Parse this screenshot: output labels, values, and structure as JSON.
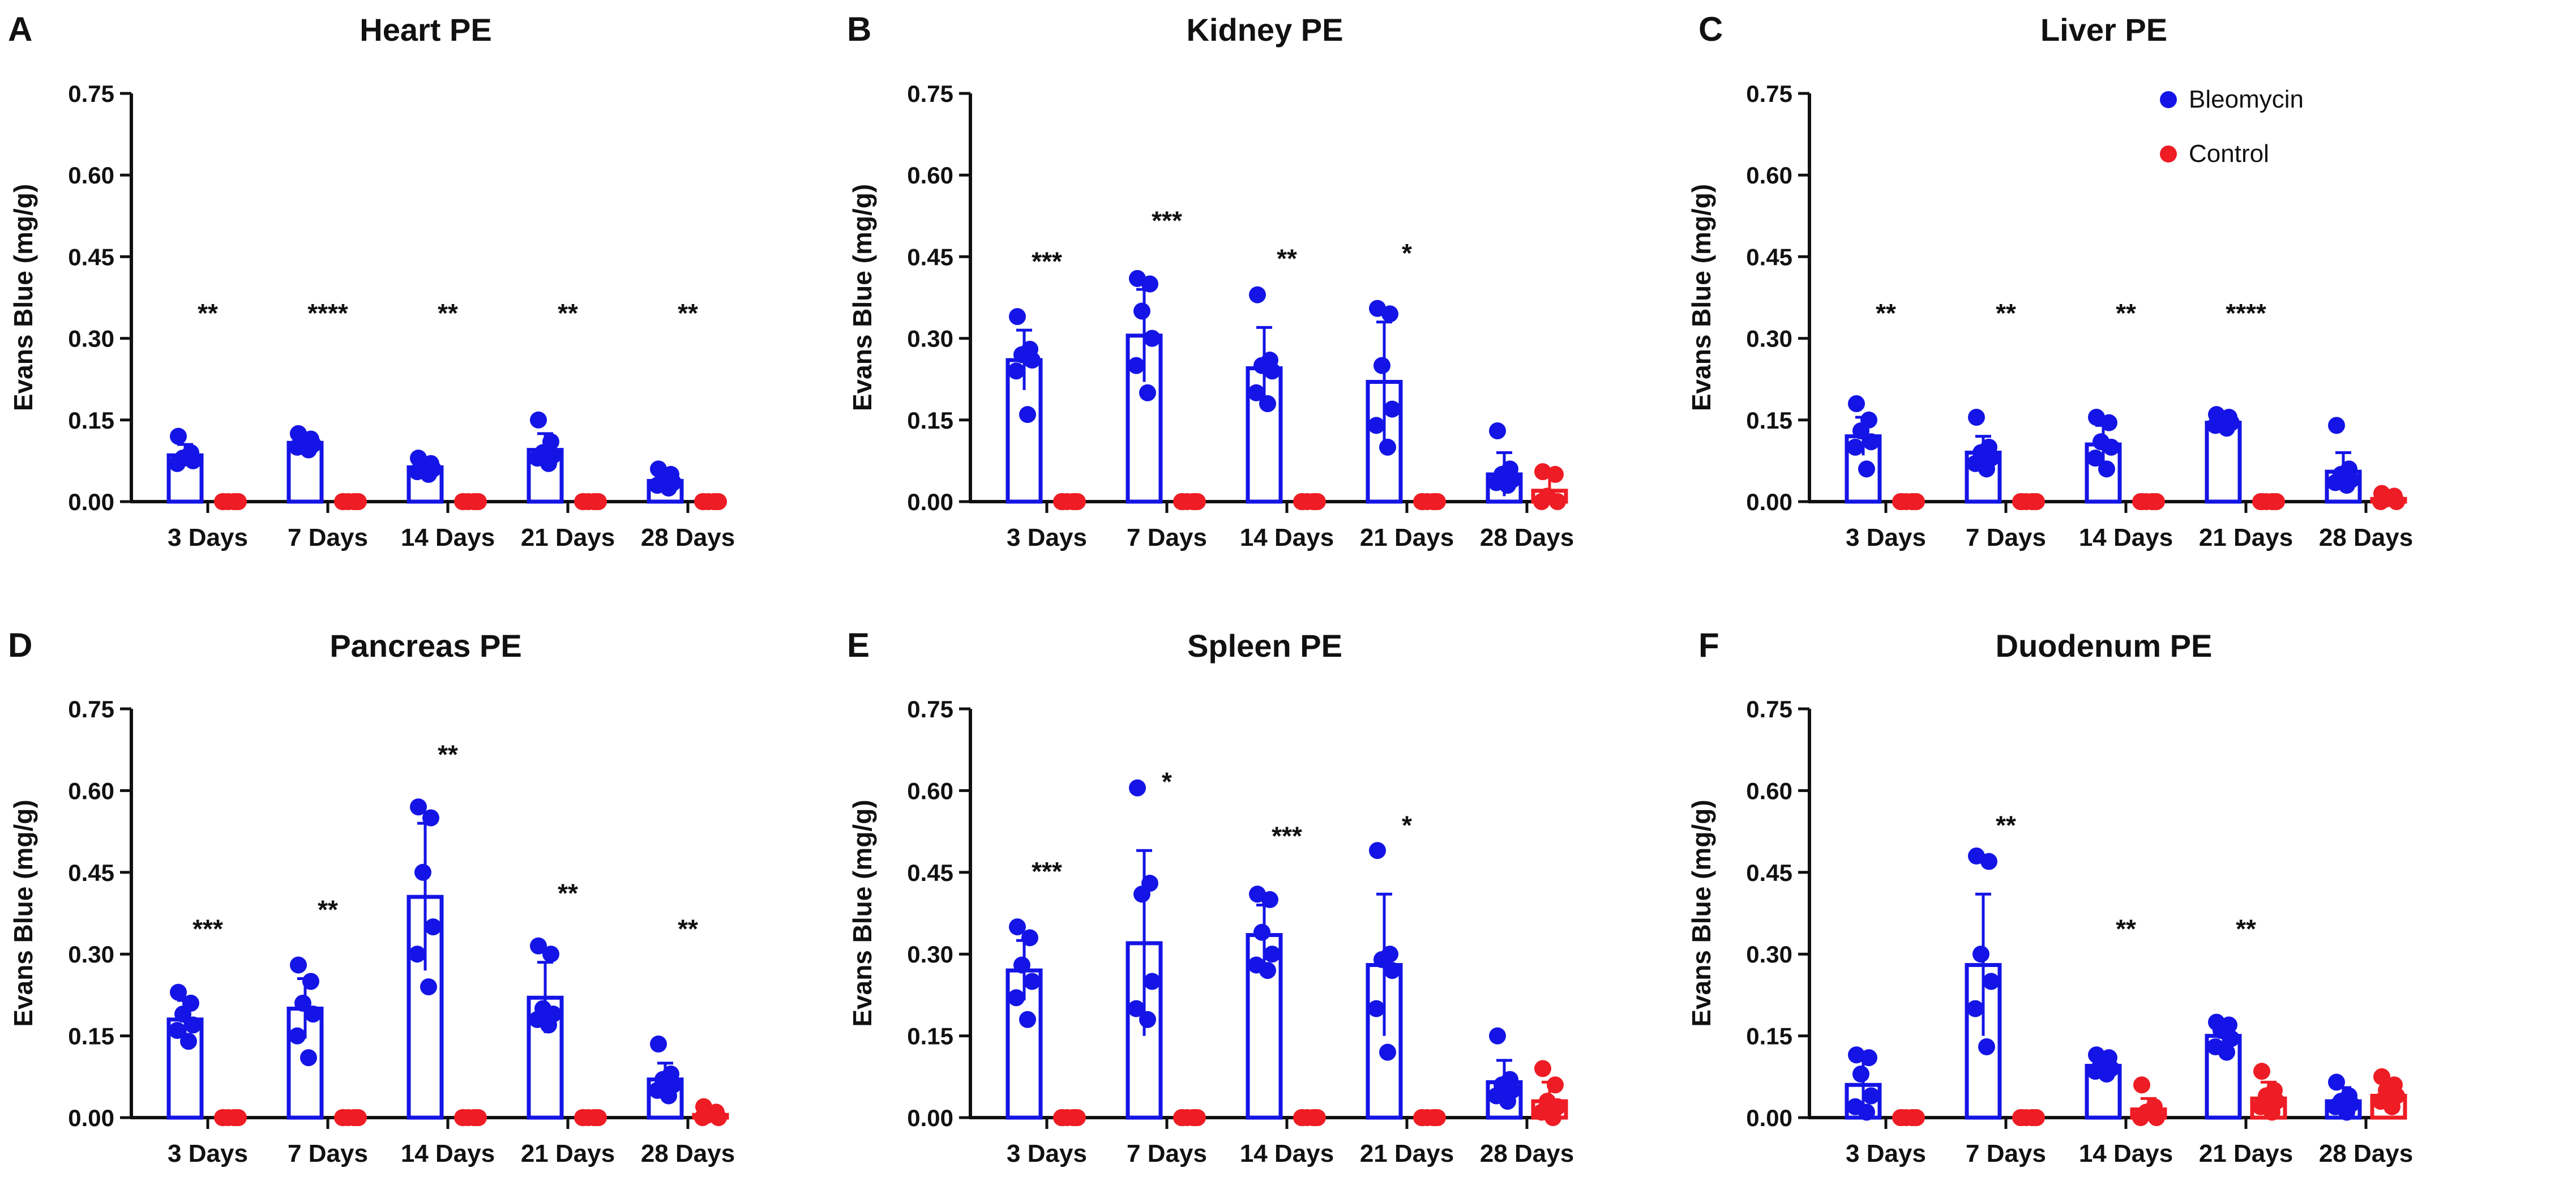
{
  "figure": {
    "ylabel": "Evans Blue (mg/g)",
    "yticks": [
      "0.00",
      "0.15",
      "0.30",
      "0.45",
      "0.60",
      "0.75"
    ],
    "ylim": [
      0,
      0.75
    ],
    "categories": [
      "3 Days",
      "7 Days",
      "14 Days",
      "21 Days",
      "28 Days"
    ],
    "legend": {
      "items": [
        {
          "label": "Bleomycin"
        },
        {
          "label": "Control"
        }
      ]
    }
  },
  "colors": {
    "bleomycin": "#1414e6",
    "control": "#ee1c24",
    "text": "#111111"
  },
  "chart_data": [
    {
      "panel": "A",
      "type": "bar",
      "title": "Heart PE",
      "xlabel": "",
      "ylabel": "Evans Blue (mg/g)",
      "ylim": [
        0,
        0.75
      ],
      "categories": [
        "3 Days",
        "7 Days",
        "14 Days",
        "21 Days",
        "28 Days"
      ],
      "significance": [
        "**",
        "****",
        "**",
        "**",
        "**"
      ],
      "series": [
        {
          "name": "Bleomycin",
          "values": [
            0.085,
            0.108,
            0.063,
            0.095,
            0.038
          ],
          "sd": [
            0.02,
            0.012,
            0.012,
            0.03,
            0.018
          ],
          "points": [
            [
              0.12,
              0.09,
              0.08,
              0.075,
              0.07,
              0.08
            ],
            [
              0.125,
              0.115,
              0.11,
              0.105,
              0.1,
              0.095
            ],
            [
              0.08,
              0.07,
              0.065,
              0.06,
              0.055,
              0.05
            ],
            [
              0.15,
              0.11,
              0.09,
              0.085,
              0.08,
              0.07
            ],
            [
              0.06,
              0.05,
              0.04,
              0.035,
              0.03,
              0.025
            ]
          ]
        },
        {
          "name": "Control",
          "values": [
            0,
            0,
            0,
            0,
            0
          ],
          "sd": [
            0,
            0,
            0,
            0,
            0
          ],
          "points": [
            [],
            [],
            [],
            [],
            []
          ]
        }
      ]
    },
    {
      "panel": "B",
      "type": "bar",
      "title": "Kidney PE",
      "xlabel": "",
      "ylabel": "Evans Blue (mg/g)",
      "ylim": [
        0,
        0.75
      ],
      "categories": [
        "3 Days",
        "7 Days",
        "14 Days",
        "21 Days",
        "28 Days"
      ],
      "significance": [
        "***",
        "***",
        "**",
        "*",
        ""
      ],
      "series": [
        {
          "name": "Bleomycin",
          "values": [
            0.26,
            0.305,
            0.245,
            0.22,
            0.05
          ],
          "sd": [
            0.055,
            0.085,
            0.075,
            0.11,
            0.04
          ],
          "points": [
            [
              0.34,
              0.28,
              0.27,
              0.26,
              0.24,
              0.16
            ],
            [
              0.41,
              0.4,
              0.35,
              0.3,
              0.25,
              0.2
            ],
            [
              0.38,
              0.26,
              0.25,
              0.24,
              0.2,
              0.18
            ],
            [
              0.355,
              0.345,
              0.25,
              0.17,
              0.14,
              0.1
            ],
            [
              0.13,
              0.06,
              0.05,
              0.04,
              0.035,
              0.03
            ]
          ]
        },
        {
          "name": "Control",
          "values": [
            0,
            0,
            0,
            0,
            0.02
          ],
          "sd": [
            0,
            0,
            0,
            0,
            0.03
          ],
          "points": [
            [],
            [],
            [],
            [],
            [
              0.055,
              0.05,
              0.01,
              0,
              0
            ]
          ]
        }
      ]
    },
    {
      "panel": "C",
      "type": "bar",
      "title": "Liver PE",
      "xlabel": "",
      "ylabel": "Evans Blue (mg/g)",
      "ylim": [
        0,
        0.75
      ],
      "categories": [
        "3 Days",
        "7 Days",
        "14 Days",
        "21 Days",
        "28 Days"
      ],
      "significance": [
        "**",
        "**",
        "**",
        "****",
        ""
      ],
      "series": [
        {
          "name": "Bleomycin",
          "values": [
            0.12,
            0.09,
            0.105,
            0.145,
            0.055
          ],
          "sd": [
            0.035,
            0.03,
            0.035,
            0.01,
            0.035
          ],
          "points": [
            [
              0.18,
              0.15,
              0.13,
              0.11,
              0.1,
              0.06
            ],
            [
              0.155,
              0.1,
              0.09,
              0.08,
              0.07,
              0.06
            ],
            [
              0.155,
              0.145,
              0.11,
              0.1,
              0.08,
              0.06
            ],
            [
              0.16,
              0.155,
              0.15,
              0.145,
              0.14,
              0.135
            ],
            [
              0.14,
              0.06,
              0.05,
              0.04,
              0.035,
              0.03
            ]
          ]
        },
        {
          "name": "Control",
          "values": [
            0,
            0,
            0,
            0,
            0.005
          ],
          "sd": [
            0,
            0,
            0,
            0,
            0.005
          ],
          "points": [
            [],
            [],
            [],
            [],
            [
              0.015,
              0.01,
              0.005,
              0,
              0
            ]
          ]
        }
      ]
    },
    {
      "panel": "D",
      "type": "bar",
      "title": "Pancreas PE",
      "xlabel": "",
      "ylabel": "Evans Blue (mg/g)",
      "ylim": [
        0,
        0.75
      ],
      "categories": [
        "3 Days",
        "7 Days",
        "14 Days",
        "21 Days",
        "28 Days"
      ],
      "significance": [
        "***",
        "**",
        "**",
        "**",
        "**"
      ],
      "series": [
        {
          "name": "Bleomycin",
          "values": [
            0.18,
            0.2,
            0.405,
            0.22,
            0.07
          ],
          "sd": [
            0.035,
            0.055,
            0.135,
            0.065,
            0.03
          ],
          "points": [
            [
              0.23,
              0.21,
              0.19,
              0.17,
              0.16,
              0.14
            ],
            [
              0.28,
              0.25,
              0.21,
              0.19,
              0.15,
              0.11
            ],
            [
              0.57,
              0.55,
              0.45,
              0.35,
              0.3,
              0.24
            ],
            [
              0.315,
              0.3,
              0.2,
              0.19,
              0.18,
              0.17
            ],
            [
              0.135,
              0.08,
              0.07,
              0.06,
              0.05,
              0.04
            ]
          ]
        },
        {
          "name": "Control",
          "values": [
            0,
            0,
            0,
            0,
            0.005
          ],
          "sd": [
            0,
            0,
            0,
            0,
            0.008
          ],
          "points": [
            [],
            [],
            [],
            [],
            [
              0.02,
              0.01,
              0.005,
              0,
              0
            ]
          ]
        }
      ]
    },
    {
      "panel": "E",
      "type": "bar",
      "title": "Spleen PE",
      "xlabel": "",
      "ylabel": "Evans Blue (mg/g)",
      "ylim": [
        0,
        0.75
      ],
      "categories": [
        "3 Days",
        "7 Days",
        "14 Days",
        "21 Days",
        "28 Days"
      ],
      "significance": [
        "***",
        "*",
        "***",
        "*",
        ""
      ],
      "series": [
        {
          "name": "Bleomycin",
          "values": [
            0.27,
            0.32,
            0.335,
            0.28,
            0.065
          ],
          "sd": [
            0.055,
            0.17,
            0.055,
            0.13,
            0.04
          ],
          "points": [
            [
              0.35,
              0.33,
              0.28,
              0.25,
              0.22,
              0.18
            ],
            [
              0.605,
              0.43,
              0.41,
              0.25,
              0.2,
              0.18
            ],
            [
              0.41,
              0.4,
              0.34,
              0.3,
              0.28,
              0.27
            ],
            [
              0.49,
              0.3,
              0.29,
              0.27,
              0.2,
              0.12
            ],
            [
              0.15,
              0.07,
              0.06,
              0.05,
              0.04,
              0.03
            ]
          ]
        },
        {
          "name": "Control",
          "values": [
            0,
            0,
            0,
            0,
            0.03
          ],
          "sd": [
            0,
            0,
            0,
            0,
            0.035
          ],
          "points": [
            [],
            [],
            [],
            [],
            [
              0.09,
              0.06,
              0.03,
              0.02,
              0.01,
              0
            ]
          ]
        }
      ]
    },
    {
      "panel": "F",
      "type": "bar",
      "title": "Duodenum PE",
      "xlabel": "",
      "ylabel": "Evans Blue (mg/g)",
      "ylim": [
        0,
        0.75
      ],
      "categories": [
        "3 Days",
        "7 Days",
        "14 Days",
        "21 Days",
        "28 Days"
      ],
      "significance": [
        "",
        "**",
        "**",
        "**",
        ""
      ],
      "series": [
        {
          "name": "Bleomycin",
          "values": [
            0.06,
            0.28,
            0.095,
            0.15,
            0.03
          ],
          "sd": [
            0.045,
            0.13,
            0.015,
            0.025,
            0.025
          ],
          "points": [
            [
              0.115,
              0.11,
              0.08,
              0.04,
              0.02,
              0.01
            ],
            [
              0.48,
              0.47,
              0.3,
              0.25,
              0.2,
              0.13
            ],
            [
              0.115,
              0.11,
              0.1,
              0.09,
              0.085,
              0.08
            ],
            [
              0.175,
              0.17,
              0.16,
              0.145,
              0.13,
              0.12
            ],
            [
              0.065,
              0.04,
              0.03,
              0.025,
              0.02,
              0.01
            ]
          ]
        },
        {
          "name": "Control",
          "values": [
            0,
            0,
            0.015,
            0.035,
            0.04
          ],
          "sd": [
            0,
            0,
            0.02,
            0.03,
            0.02
          ],
          "points": [
            [],
            [],
            [
              0.06,
              0.02,
              0.01,
              0,
              0
            ],
            [
              0.085,
              0.05,
              0.04,
              0.03,
              0.02,
              0.01
            ],
            [
              0.075,
              0.06,
              0.05,
              0.04,
              0.03,
              0.02
            ]
          ]
        }
      ]
    }
  ]
}
